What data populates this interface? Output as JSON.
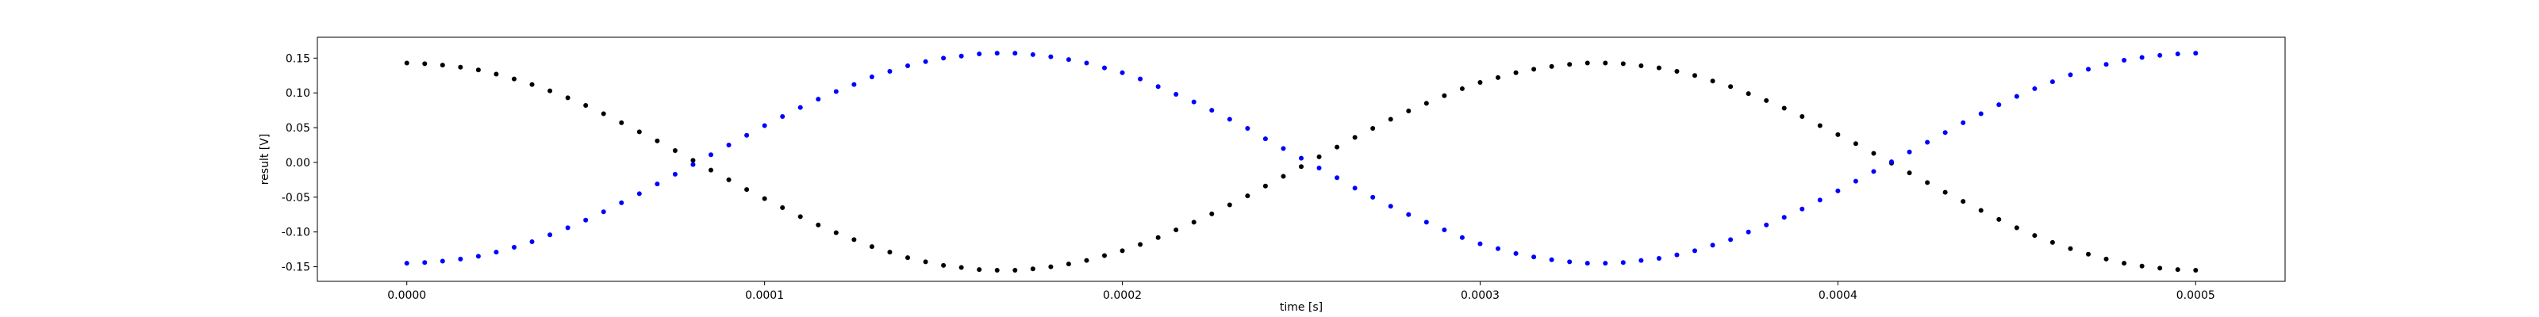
{
  "chart_data": {
    "type": "scatter",
    "xlabel": "time [s]",
    "ylabel": "result [V]",
    "xlim": [
      -2.5e-05,
      0.000525
    ],
    "ylim": [
      -0.171,
      0.18
    ],
    "xticks": [
      {
        "value": 0,
        "label": "0.0000"
      },
      0.0001,
      0.0002,
      0.0003,
      0.0004,
      0.0005
    ],
    "yticks": [
      -0.15,
      {
        "value": -0.1,
        "label": "-0.10"
      },
      -0.05,
      {
        "value": 0,
        "label": "0.00"
      },
      0.05,
      {
        "value": 0.1,
        "label": "0.10"
      },
      0.15
    ],
    "x": [
      0,
      5e-06,
      1e-05,
      1.5e-05,
      2e-05,
      2.5e-05,
      3e-05,
      3.5e-05,
      4e-05,
      4.5e-05,
      5e-05,
      5.5e-05,
      6e-05,
      6.5e-05,
      7e-05,
      7.5e-05,
      8e-05,
      8.5e-05,
      9e-05,
      9.5e-05,
      0.0001,
      0.000105,
      0.00011,
      0.000115,
      0.00012,
      0.000125,
      0.00013,
      0.000135,
      0.00014,
      0.000145,
      0.00015,
      0.000155,
      0.00016,
      0.000165,
      0.00017,
      0.000175,
      0.00018,
      0.000185,
      0.00019,
      0.000195,
      0.0002,
      0.000205,
      0.00021,
      0.000215,
      0.00022,
      0.000225,
      0.00023,
      0.000235,
      0.00024,
      0.000245,
      0.00025,
      0.000255,
      0.00026,
      0.000265,
      0.00027,
      0.000275,
      0.00028,
      0.000285,
      0.00029,
      0.000295,
      0.0003,
      0.000305,
      0.00031,
      0.000315,
      0.00032,
      0.000325,
      0.00033,
      0.000335,
      0.00034,
      0.000345,
      0.00035,
      0.000355,
      0.00036,
      0.000365,
      0.00037,
      0.000375,
      0.00038,
      0.000385,
      0.00039,
      0.000395,
      0.0004,
      0.000405,
      0.00041,
      0.000415,
      0.00042,
      0.000425,
      0.00043,
      0.000435,
      0.00044,
      0.000445,
      0.00045,
      0.000455,
      0.00046,
      0.000465,
      0.00047,
      0.000475,
      0.00048,
      0.000485,
      0.00049,
      0.000495,
      0.0005
    ],
    "series": [
      {
        "color": "#000000",
        "values": [
          0.143,
          0.142,
          0.14,
          0.137,
          0.133,
          0.127,
          0.12,
          0.112,
          0.103,
          0.093,
          0.082,
          0.07,
          0.057,
          0.044,
          0.031,
          0.017,
          0.003,
          -0.011,
          -0.025,
          -0.039,
          -0.052,
          -0.065,
          -0.078,
          -0.09,
          -0.101,
          -0.111,
          -0.121,
          -0.129,
          -0.137,
          -0.143,
          -0.148,
          -0.151,
          -0.154,
          -0.155,
          -0.155,
          -0.153,
          -0.15,
          -0.146,
          -0.141,
          -0.134,
          -0.127,
          -0.118,
          -0.108,
          -0.097,
          -0.086,
          -0.074,
          -0.061,
          -0.048,
          -0.034,
          -0.02,
          -0.006,
          0.008,
          0.022,
          0.036,
          0.049,
          0.062,
          0.074,
          0.085,
          0.096,
          0.106,
          0.115,
          0.122,
          0.129,
          0.134,
          0.138,
          0.141,
          0.143,
          0.143,
          0.142,
          0.139,
          0.136,
          0.131,
          0.125,
          0.117,
          0.109,
          0.099,
          0.089,
          0.078,
          0.066,
          0.053,
          0.04,
          0.027,
          0.013,
          -0.001,
          -0.015,
          -0.029,
          -0.043,
          -0.056,
          -0.069,
          -0.082,
          -0.094,
          -0.105,
          -0.115,
          -0.124,
          -0.132,
          -0.139,
          -0.145,
          -0.149,
          -0.152,
          -0.154,
          -0.155
        ]
      },
      {
        "color": "#0000ff",
        "values": [
          -0.145,
          -0.144,
          -0.142,
          -0.139,
          -0.135,
          -0.129,
          -0.122,
          -0.114,
          -0.104,
          -0.094,
          -0.083,
          -0.071,
          -0.058,
          -0.045,
          -0.031,
          -0.017,
          -0.003,
          0.011,
          0.025,
          0.039,
          0.053,
          0.066,
          0.079,
          0.091,
          0.102,
          0.112,
          0.123,
          0.131,
          0.139,
          0.145,
          0.15,
          0.153,
          0.156,
          0.157,
          0.157,
          0.155,
          0.152,
          0.148,
          0.143,
          0.136,
          0.129,
          0.12,
          0.109,
          0.098,
          0.087,
          0.075,
          0.062,
          0.049,
          0.034,
          0.02,
          0.006,
          -0.008,
          -0.022,
          -0.037,
          -0.05,
          -0.063,
          -0.075,
          -0.086,
          -0.097,
          -0.108,
          -0.117,
          -0.124,
          -0.131,
          -0.136,
          -0.14,
          -0.143,
          -0.145,
          -0.145,
          -0.144,
          -0.141,
          -0.138,
          -0.133,
          -0.127,
          -0.119,
          -0.111,
          -0.1,
          -0.09,
          -0.079,
          -0.067,
          -0.054,
          -0.041,
          -0.027,
          -0.013,
          0.001,
          0.015,
          0.029,
          0.043,
          0.057,
          0.07,
          0.083,
          0.095,
          0.106,
          0.116,
          0.126,
          0.134,
          0.141,
          0.147,
          0.151,
          0.154,
          0.156,
          0.157
        ]
      }
    ]
  }
}
